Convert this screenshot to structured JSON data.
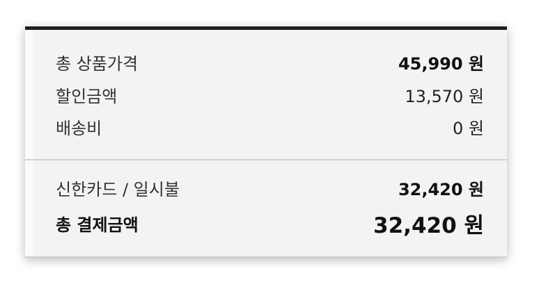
{
  "summary": {
    "total_product_price": {
      "label": "총 상품가격",
      "value": "45,990 원"
    },
    "discount": {
      "label": "할인금액",
      "value": "13,570 원"
    },
    "shipping": {
      "label": "배송비",
      "value": "0 원"
    }
  },
  "payment": {
    "method": {
      "label": "신한카드 / 일시불",
      "value": "32,420 원"
    },
    "total": {
      "label": "총 결제금액",
      "value": "32,420 원"
    }
  }
}
